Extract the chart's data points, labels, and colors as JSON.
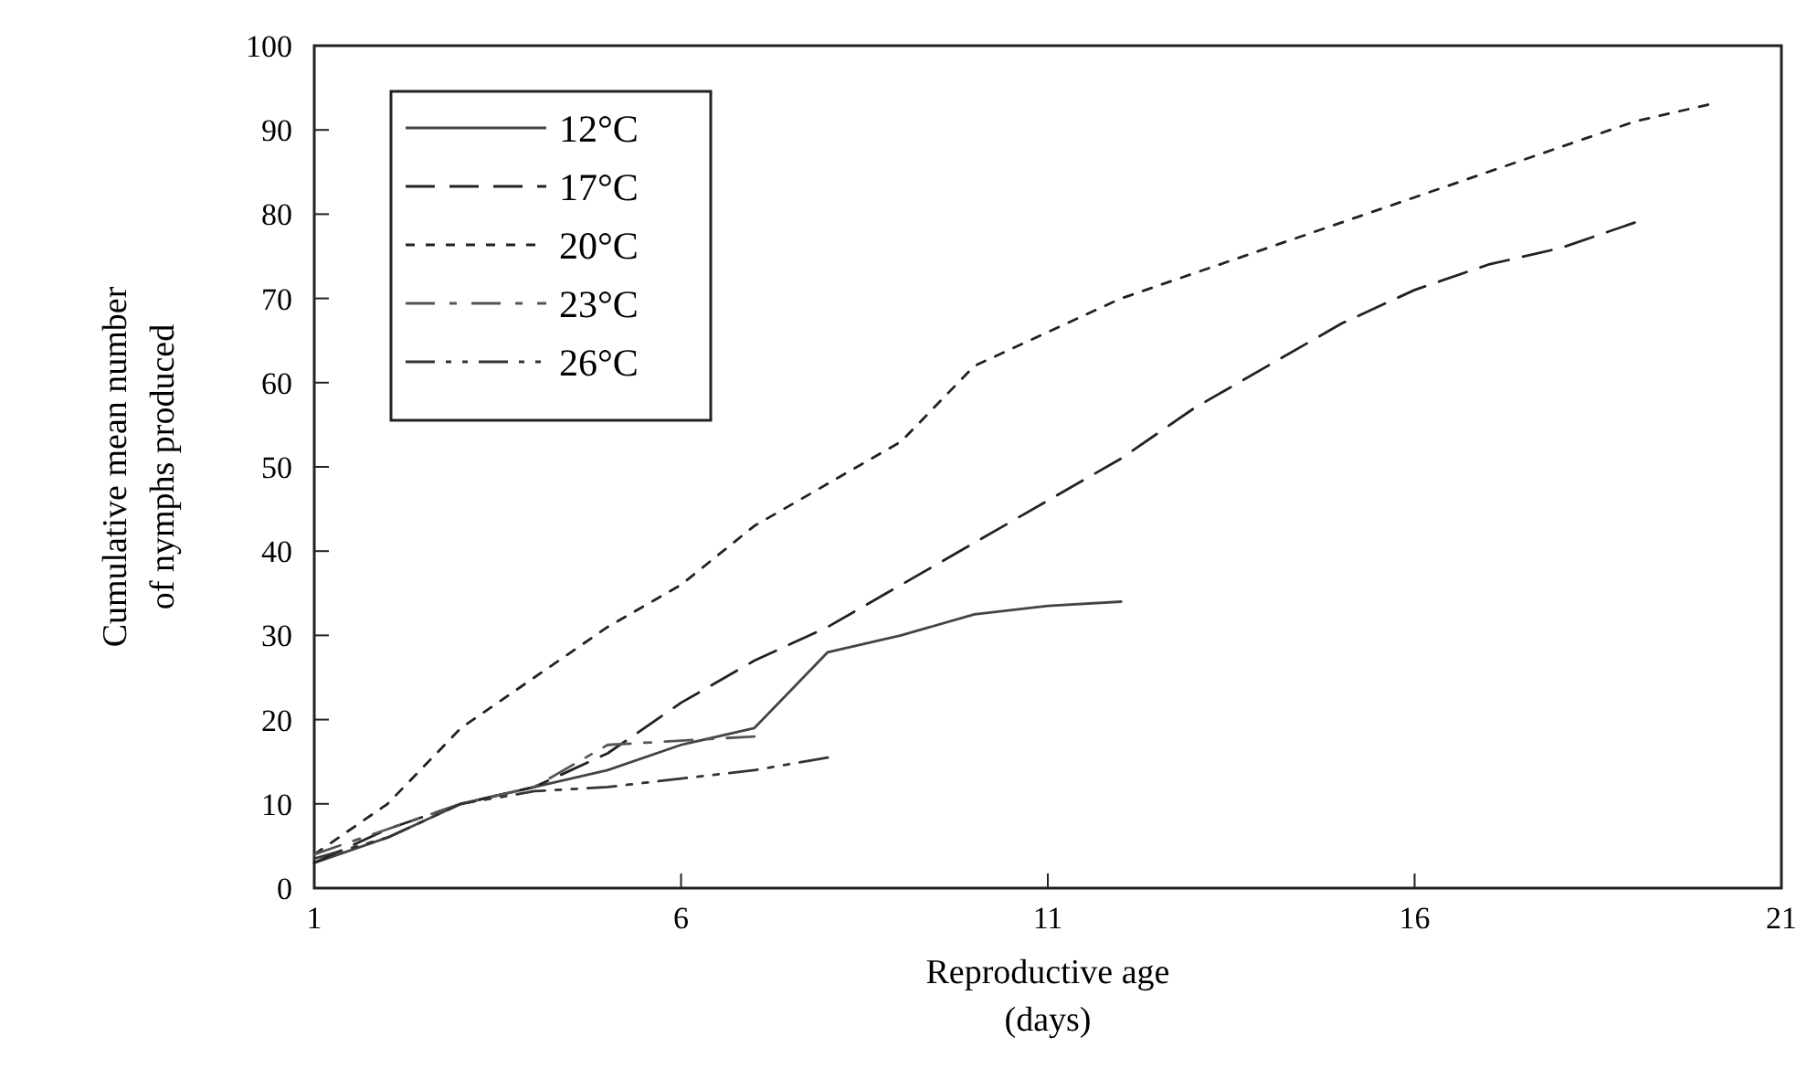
{
  "chart_data": {
    "type": "line",
    "xlabel": "Reproductive age\n(days)",
    "ylabel": "Cumulative mean number\nof nymphs produced",
    "xlim": [
      1,
      21
    ],
    "ylim": [
      0,
      100
    ],
    "xticks": [
      1,
      6,
      11,
      16,
      21
    ],
    "yticks": [
      0,
      10,
      20,
      30,
      40,
      50,
      60,
      70,
      80,
      90,
      100
    ],
    "grid": false,
    "legend": "top left",
    "marker": "none",
    "series": [
      {
        "name": "12°C",
        "color": "#444444",
        "line_style": "solid",
        "x": [
          1,
          2,
          3,
          4,
          5,
          6,
          7,
          8,
          9,
          10,
          11,
          12
        ],
        "values": [
          3,
          6,
          10,
          12,
          14,
          17,
          19,
          28,
          30,
          32.5,
          33.5,
          34
        ]
      },
      {
        "name": "17°C",
        "color": "#222222",
        "line_style": "dashed",
        "x": [
          1,
          2,
          3,
          4,
          5,
          6,
          7,
          8,
          9,
          10,
          11,
          12,
          13,
          14,
          15,
          16,
          17,
          18,
          19
        ],
        "values": [
          3,
          7,
          10,
          12,
          16,
          22,
          27,
          31,
          36,
          41,
          46,
          51,
          57,
          62,
          67,
          71,
          74,
          76,
          79
        ]
      },
      {
        "name": "20°C",
        "color": "#222222",
        "line_style": "dotted",
        "x": [
          1,
          2,
          3,
          4,
          5,
          6,
          7,
          8,
          9,
          10,
          11,
          12,
          13,
          14,
          15,
          16,
          17,
          18,
          19,
          20
        ],
        "values": [
          4,
          10,
          19,
          25,
          31,
          36,
          43,
          48,
          53,
          62,
          66,
          70,
          73,
          76,
          79,
          82,
          85,
          88,
          91,
          93
        ]
      },
      {
        "name": "23°C",
        "color": "#555555",
        "line_style": "dashdot",
        "x": [
          1,
          2,
          3,
          4,
          5,
          6,
          7
        ],
        "values": [
          4,
          7,
          10,
          12,
          17,
          17.5,
          18
        ]
      },
      {
        "name": "26°C",
        "color": "#333333",
        "line_style": "dashdotdot",
        "x": [
          1,
          2,
          3,
          4,
          5,
          6,
          7,
          8
        ],
        "values": [
          3.5,
          6,
          10,
          11.5,
          12,
          13,
          14,
          15.5
        ]
      }
    ]
  }
}
